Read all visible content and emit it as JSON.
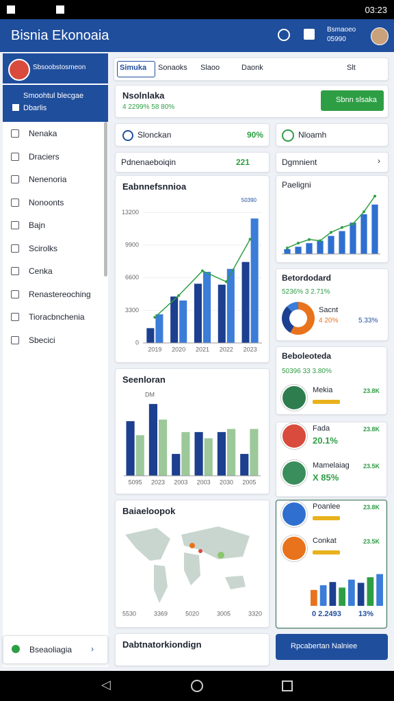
{
  "status": {
    "time": "03:23"
  },
  "app_bar": {
    "title": "Bisnia Ekonoaia",
    "account": "Bsmaoeo",
    "account_id": "05990"
  },
  "sidebar": {
    "header": "Sbsoobstosmeon",
    "highlight": [
      "Smoohtul blecgae",
      "Dbarlis"
    ],
    "items": [
      "Nenaka",
      "Draciers",
      "Nenenoria",
      "Nonoonts",
      "Bajn",
      "Scirolks",
      "Cenka",
      "Renastereoching",
      "Tioracbnchenia",
      "Sbecici"
    ],
    "footer": "Bseaoliagia"
  },
  "tabs": [
    "Simuka",
    "Sonaoks",
    "Slaoo",
    "Daonk",
    "Slt"
  ],
  "summary": {
    "title": "Nsolnlaka",
    "stats": "4 2299% 58 80%",
    "button": "Sbnn slsaka"
  },
  "status_row": {
    "label": "Slonckan",
    "value": "90%",
    "right_label": "Nloamh"
  },
  "header_row": {
    "label": "Pdnenaeboiqin",
    "value": "221",
    "right_label": "Dgmnient"
  },
  "main_chart": {
    "type": "bar",
    "title": "Eabnnefsnnioa",
    "annotation": "50390",
    "categories": [
      "2019",
      "2020",
      "2021",
      "2022",
      "2023"
    ],
    "series": [
      {
        "color": "#1c3f8f",
        "values": [
          1500,
          4700,
          6000,
          5900,
          8200
        ]
      },
      {
        "color": "#3b7dd8",
        "values": [
          2900,
          4300,
          7200,
          7500,
          12600
        ]
      },
      {
        "type": "line",
        "color": "#2e9e44",
        "values": [
          2600,
          4800,
          7300,
          6200,
          10500
        ]
      }
    ],
    "ylim": [
      0,
      14000
    ],
    "yticks": [
      0,
      3300,
      6600,
      9900,
      13200
    ]
  },
  "bar_chart": {
    "type": "bar",
    "title": "Seenloran",
    "annotation": "DM",
    "categories": [
      "5095",
      "2023",
      "2003",
      "2003",
      "2030",
      "2005"
    ],
    "series": [
      {
        "color": "#1c3f8f",
        "values": [
          70,
          92,
          28,
          56,
          56,
          28
        ]
      },
      {
        "color": "#9cc89a",
        "values": [
          52,
          72,
          56,
          48,
          60,
          60
        ]
      }
    ],
    "ylim": [
      0,
      100
    ]
  },
  "map_card": {
    "title": "Baiaeloopok",
    "labels": [
      "5530",
      "3369",
      "5020",
      "3005",
      "3320"
    ]
  },
  "bottom_card": {
    "title": "Dabtnatorkiondign"
  },
  "mini_chart": {
    "type": "bar",
    "title": "Paeligni",
    "series": [
      {
        "color": "#2f6fd0",
        "values": [
          8,
          12,
          18,
          22,
          30,
          38,
          52,
          66,
          82
        ]
      },
      {
        "type": "line",
        "color": "#2e9e44",
        "values": [
          10,
          18,
          24,
          22,
          36,
          44,
          50,
          70,
          96
        ]
      }
    ],
    "ylim": [
      0,
      100
    ]
  },
  "donut_card": {
    "title": "Betordodard",
    "stats": "5236% 3 2.71%",
    "chart": {
      "type": "pie",
      "values": [
        58,
        30,
        12
      ],
      "colors": [
        "#e8731c",
        "#1c3f8f",
        "#3b7dd8"
      ]
    },
    "legend": [
      "Sacnt",
      "4 20%",
      "5.33%"
    ]
  },
  "list_card": {
    "title": "Beboleoteda",
    "stats": "50396 33 3.80%",
    "items": [
      {
        "name": "Mekia",
        "value": "23.8K"
      },
      {
        "name": "Fada",
        "value": "23.8K",
        "stat": "20.1%"
      },
      {
        "name": "Mamelaiag",
        "value": "23.5K",
        "stat": "X 85%"
      },
      {
        "name": "Poanlee",
        "value": "23.8K"
      },
      {
        "name": "Conkat",
        "value": "23.5K"
      }
    ]
  },
  "small_chart": {
    "type": "bar",
    "colors": [
      "#e8731c",
      "#3b7dd8",
      "#1c3f8f",
      "#2e9e44",
      "#3b7dd8",
      "#1c3f8f",
      "#2e9e44",
      "#3b7dd8"
    ],
    "values": [
      40,
      52,
      60,
      46,
      66,
      58,
      72,
      80
    ],
    "ylim": [
      0,
      100
    ],
    "labels": [
      "0 2.2493",
      "13%"
    ]
  },
  "action_button": "Rpcabertan Nalniee"
}
